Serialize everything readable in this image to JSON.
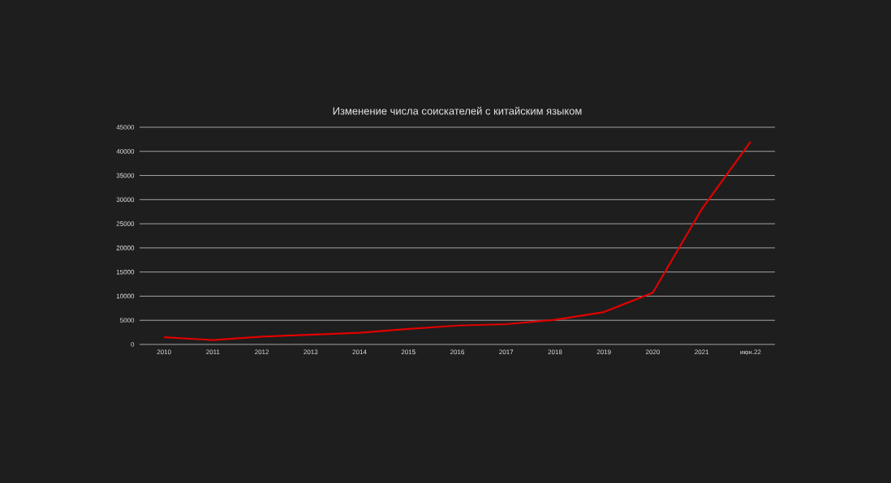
{
  "chart_data": {
    "type": "line",
    "title": "Изменение числа соискателей с китайским языком",
    "categories": [
      "2010",
      "2011",
      "2012",
      "2013",
      "2014",
      "2015",
      "2016",
      "2017",
      "2018",
      "2019",
      "2020",
      "2021",
      "июн.22"
    ],
    "series": [
      {
        "color": "#e00000",
        "values": [
          1500,
          900,
          1600,
          2000,
          2400,
          3200,
          3900,
          4200,
          5100,
          6700,
          10700,
          28000,
          42000
        ]
      }
    ],
    "ylim": [
      0,
      45000
    ],
    "yticks": [
      0,
      5000,
      10000,
      15000,
      20000,
      25000,
      30000,
      35000,
      40000,
      45000
    ],
    "grid": "y",
    "marker": "none",
    "line_style": "solid"
  }
}
